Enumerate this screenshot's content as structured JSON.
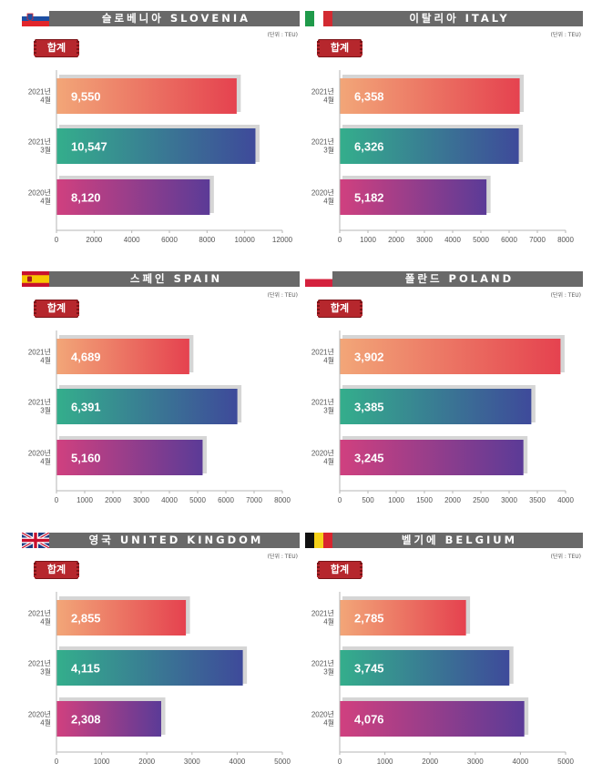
{
  "colors": {
    "titlebar": "#696969",
    "tag": "#b6272d",
    "shadow": "#d5d5d5",
    "grad_top": [
      "#f2a678",
      "#e5424f"
    ],
    "grad_mid": [
      "#34ae8c",
      "#3e4a9a"
    ],
    "grad_bot": [
      "#d0407f",
      "#5b3b97"
    ]
  },
  "category_labels": [
    [
      "2021년",
      "4월"
    ],
    [
      "2021년",
      "3월"
    ],
    [
      "2020년",
      "4월"
    ]
  ],
  "chart_data": [
    {
      "type": "bar",
      "orientation": "horizontal",
      "title": "슬로베니아 SLOVENIA",
      "flag": "slovenia-flag-icon",
      "unit": "(단위 : TEU)",
      "tag": "합계",
      "categories": [
        "2021년 4월",
        "2021년 3월",
        "2020년 4월"
      ],
      "values": [
        9550,
        10547,
        8120
      ],
      "value_labels": [
        "9,550",
        "10,547",
        "8,120"
      ],
      "xlim": [
        0,
        12000
      ],
      "xticks": [
        "0",
        "2000",
        "4000",
        "6000",
        "8000",
        "10000",
        "12000"
      ]
    },
    {
      "type": "bar",
      "orientation": "horizontal",
      "title": "이탈리아 ITALY",
      "flag": "italy-flag-icon",
      "unit": "(단위 : TEU)",
      "tag": "합계",
      "categories": [
        "2021년 4월",
        "2021년 3월",
        "2020년 4월"
      ],
      "values": [
        6358,
        6326,
        5182
      ],
      "value_labels": [
        "6,358",
        "6,326",
        "5,182"
      ],
      "xlim": [
        0,
        8000
      ],
      "xticks": [
        "0",
        "1000",
        "2000",
        "3000",
        "4000",
        "5000",
        "6000",
        "7000",
        "8000"
      ]
    },
    {
      "type": "bar",
      "orientation": "horizontal",
      "title": "스페인 SPAIN",
      "flag": "spain-flag-icon",
      "unit": "(단위 : TEU)",
      "tag": "합계",
      "categories": [
        "2021년 4월",
        "2021년 3월",
        "2020년 4월"
      ],
      "values": [
        4689,
        6391,
        5160
      ],
      "value_labels": [
        "4,689",
        "6,391",
        "5,160"
      ],
      "xlim": [
        0,
        8000
      ],
      "xticks": [
        "0",
        "1000",
        "2000",
        "3000",
        "4000",
        "5000",
        "6000",
        "7000",
        "8000"
      ]
    },
    {
      "type": "bar",
      "orientation": "horizontal",
      "title": "폴란드 POLAND",
      "flag": "poland-flag-icon",
      "unit": "(단위 : TEU)",
      "tag": "합계",
      "categories": [
        "2021년 4월",
        "2021년 3월",
        "2020년 4월"
      ],
      "values": [
        3902,
        3385,
        3245
      ],
      "value_labels": [
        "3,902",
        "3,385",
        "3,245"
      ],
      "xlim": [
        0,
        4000
      ],
      "xticks": [
        "0",
        "500",
        "1000",
        "1500",
        "2000",
        "2500",
        "3000",
        "3500",
        "4000"
      ]
    },
    {
      "type": "bar",
      "orientation": "horizontal",
      "title": "영국 UNITED KINGDOM",
      "flag": "uk-flag-icon",
      "unit": "(단위 : TEU)",
      "tag": "합계",
      "categories": [
        "2021년 4월",
        "2021년 3월",
        "2020년 4월"
      ],
      "values": [
        2855,
        4115,
        2308
      ],
      "value_labels": [
        "2,855",
        "4,115",
        "2,308"
      ],
      "xlim": [
        0,
        5000
      ],
      "xticks": [
        "0",
        "1000",
        "2000",
        "3000",
        "4000",
        "5000"
      ]
    },
    {
      "type": "bar",
      "orientation": "horizontal",
      "title": "벨기에 BELGIUM",
      "flag": "belgium-flag-icon",
      "unit": "(단위 : TEU)",
      "tag": "합계",
      "categories": [
        "2021년 4월",
        "2021년 3월",
        "2020년 4월"
      ],
      "values": [
        2785,
        3745,
        4076
      ],
      "value_labels": [
        "2,785",
        "3,745",
        "4,076"
      ],
      "xlim": [
        0,
        5000
      ],
      "xticks": [
        "0",
        "1000",
        "2000",
        "3000",
        "4000",
        "5000"
      ]
    }
  ]
}
